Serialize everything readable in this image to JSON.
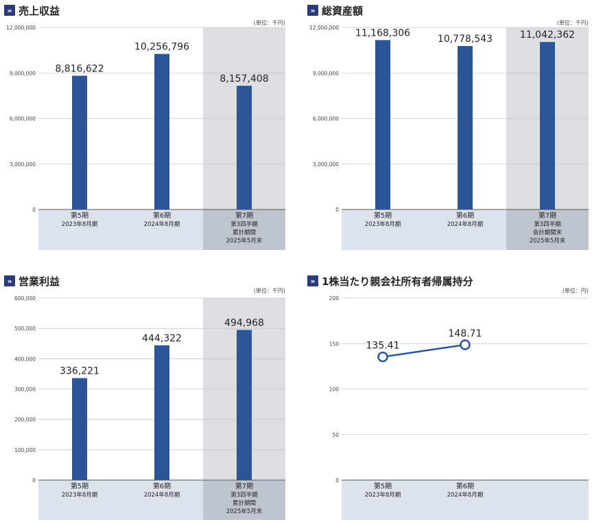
{
  "panels": [
    {
      "title": "売上収益",
      "unit": "(単位：千円)",
      "chart_data": {
        "type": "bar",
        "ylim": [
          0,
          12000000
        ],
        "yticks": [
          "0",
          "3,000,000",
          "6,000,000",
          "9,000,000",
          "12,000,000"
        ],
        "categories": [
          {
            "lines": [
              "第5期",
              "2023年8月期"
            ]
          },
          {
            "lines": [
              "第6期",
              "2024年8月期"
            ]
          },
          {
            "lines": [
              "第7期",
              "第3四半期",
              "累計期間",
              "2025年5月末"
            ]
          }
        ],
        "values": [
          8816622,
          10256796,
          8157408
        ],
        "labels": [
          "8,816,622",
          "10,256,796",
          "8,157,408"
        ],
        "highlight_last": true
      }
    },
    {
      "title": "総資産額",
      "unit": "(単位：千円)",
      "chart_data": {
        "type": "bar",
        "ylim": [
          0,
          12000000
        ],
        "yticks": [
          "0",
          "3,000,000",
          "6,000,000",
          "9,000,000",
          "12,000,000"
        ],
        "categories": [
          {
            "lines": [
              "第5期",
              "2023年8月期"
            ]
          },
          {
            "lines": [
              "第6期",
              "2024年8月期"
            ]
          },
          {
            "lines": [
              "第7期",
              "第3四半期",
              "会計期間末",
              "2025年5月末"
            ]
          }
        ],
        "values": [
          11168306,
          10778543,
          11042362
        ],
        "labels": [
          "11,168,306",
          "10,778,543",
          "11,042,362"
        ],
        "highlight_last": true
      }
    },
    {
      "title": "営業利益",
      "unit": "(単位：千円)",
      "chart_data": {
        "type": "bar",
        "ylim": [
          0,
          600000
        ],
        "yticks": [
          "0",
          "100,000",
          "200,000",
          "300,000",
          "400,000",
          "500,000",
          "600,000"
        ],
        "categories": [
          {
            "lines": [
              "第5期",
              "2023年8月期"
            ]
          },
          {
            "lines": [
              "第6期",
              "2024年8月期"
            ]
          },
          {
            "lines": [
              "第7期",
              "第3四半期",
              "累計期間",
              "2025年5月末"
            ]
          }
        ],
        "values": [
          336221,
          444322,
          494968
        ],
        "labels": [
          "336,221",
          "444,322",
          "494,968"
        ],
        "highlight_last": true
      }
    },
    {
      "title": "1株当たり親会社所有者帰属持分",
      "unit": "(単位：円)",
      "chart_data": {
        "type": "line",
        "ylim": [
          0,
          200
        ],
        "yticks": [
          "0",
          "50",
          "100",
          "150",
          "200"
        ],
        "categories": [
          {
            "lines": [
              "第5期",
              "2023年8月期"
            ]
          },
          {
            "lines": [
              "第6期",
              "2024年8月期"
            ]
          },
          {
            "lines": []
          }
        ],
        "values": [
          135.41,
          148.71
        ],
        "labels": [
          "135.41",
          "148.71"
        ],
        "highlight_last": false
      }
    }
  ],
  "colors": {
    "bar": "#2b5597",
    "highlight_bg": "#dddee2",
    "cat_bg": "#dde3ec",
    "cat_bg_highlight": "#bfc5cf",
    "grid": "#c8c8c8",
    "title_icon": "#2b3a78"
  }
}
